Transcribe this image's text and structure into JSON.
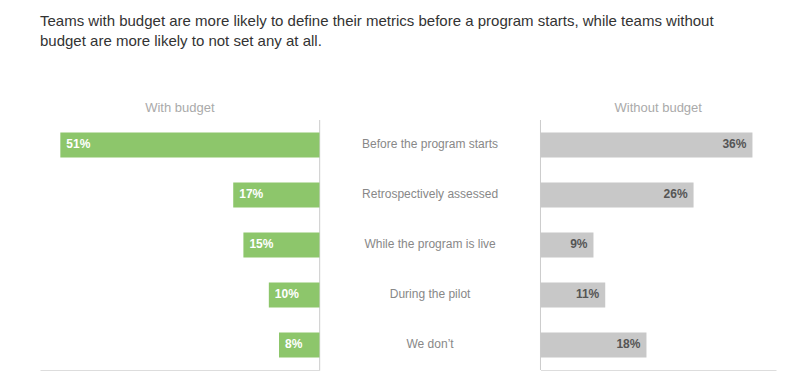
{
  "chart_data": [
    {
      "type": "bar",
      "orientation": "horizontal",
      "title": "Teams with budget are more likely to define their metrics before a program starts, while teams without budget are more likely to not set any at all.",
      "categories": [
        "Before the program starts",
        "Retrospectively assessed",
        "While the program is live",
        "During the pilot",
        "We don’t"
      ],
      "series": [
        {
          "name": "With budget",
          "color": "#8dc66b",
          "values": [
            51,
            17,
            15,
            10,
            8
          ],
          "value_labels": [
            "51%",
            "17%",
            "15%",
            "10%",
            "8%"
          ]
        }
      ],
      "xlim": [
        0,
        55
      ],
      "data_labels": true,
      "tick_labels": false,
      "grid": false
    },
    {
      "type": "bar",
      "orientation": "horizontal",
      "categories": [
        "Before the program starts",
        "Retrospectively assessed",
        "While the program is live",
        "During the pilot",
        "We don’t"
      ],
      "series": [
        {
          "name": "Without budget",
          "color": "#c8c8c8",
          "values": [
            36,
            26,
            9,
            11,
            18
          ],
          "value_labels": [
            "36%",
            "26%",
            "9%",
            "11%",
            "18%"
          ]
        }
      ],
      "xlim": [
        0,
        40
      ],
      "data_labels": true,
      "tick_labels": false,
      "grid": false
    }
  ]
}
